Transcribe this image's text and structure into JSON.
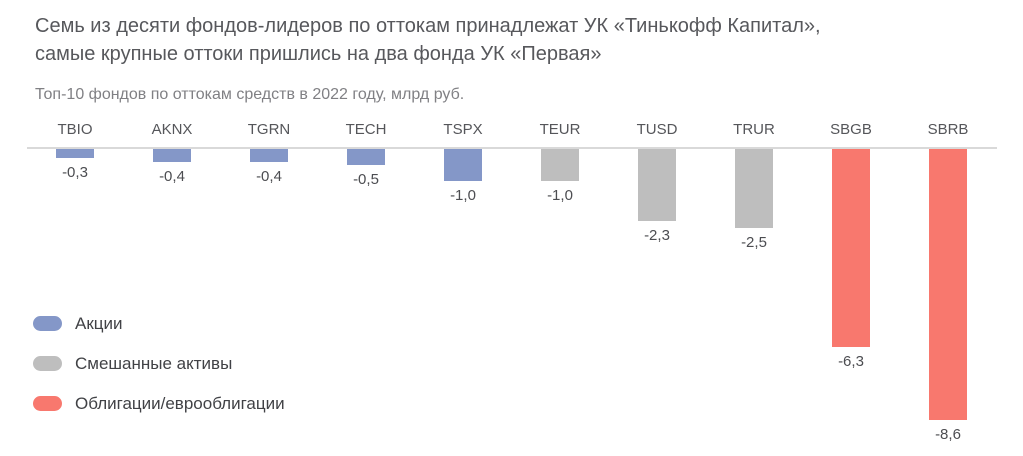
{
  "chart_data": {
    "type": "bar",
    "title": "Семь из десяти фондов-лидеров по оттокам принадлежат УК «Тинькофф Капитал», самые крупные оттоки пришлись на два фонда УК «Первая»",
    "subtitle": "Топ-10 фондов по оттокам средств в 2022 году, млрд руб.",
    "unit": "млрд руб.",
    "categories": [
      "TBIO",
      "AKNX",
      "TGRN",
      "TECH",
      "TSPX",
      "TEUR",
      "TUSD",
      "TRUR",
      "SBGB",
      "SBRB"
    ],
    "values": [
      -0.3,
      -0.4,
      -0.4,
      -0.5,
      -1.0,
      -1.0,
      -2.3,
      -2.5,
      -6.3,
      -8.6
    ],
    "value_labels": [
      "-0,3",
      "-0,4",
      "-0,4",
      "-0,5",
      "-1,0",
      "-1,0",
      "-2,3",
      "-2,5",
      "-6,3",
      "-8,6"
    ],
    "series_by_category": [
      "stocks",
      "stocks",
      "stocks",
      "stocks",
      "stocks",
      "mixed",
      "mixed",
      "mixed",
      "bonds",
      "bonds"
    ],
    "ylim": [
      -9,
      0
    ],
    "grid": false,
    "y_axis_visible": false,
    "value_labels_position": "below-bar",
    "legend_position": "bottom-left"
  },
  "colors": {
    "stocks": "#8497c8",
    "mixed": "#bebebe",
    "bonds": "#f8786e",
    "axis_line": "#d9d9d9",
    "title_text": "#57585c",
    "subtitle_text": "#808084",
    "tick_text": "#55565a",
    "value_text": "#4c4d51",
    "background": "#ffffff"
  },
  "legend": {
    "items": [
      {
        "key": "stocks",
        "label": "Акции",
        "color": "#8497c8"
      },
      {
        "key": "mixed",
        "label": "Смешанные активы",
        "color": "#bebebe"
      },
      {
        "key": "bonds",
        "label": "Облигации/еврооблигации",
        "color": "#f8786e"
      }
    ]
  }
}
